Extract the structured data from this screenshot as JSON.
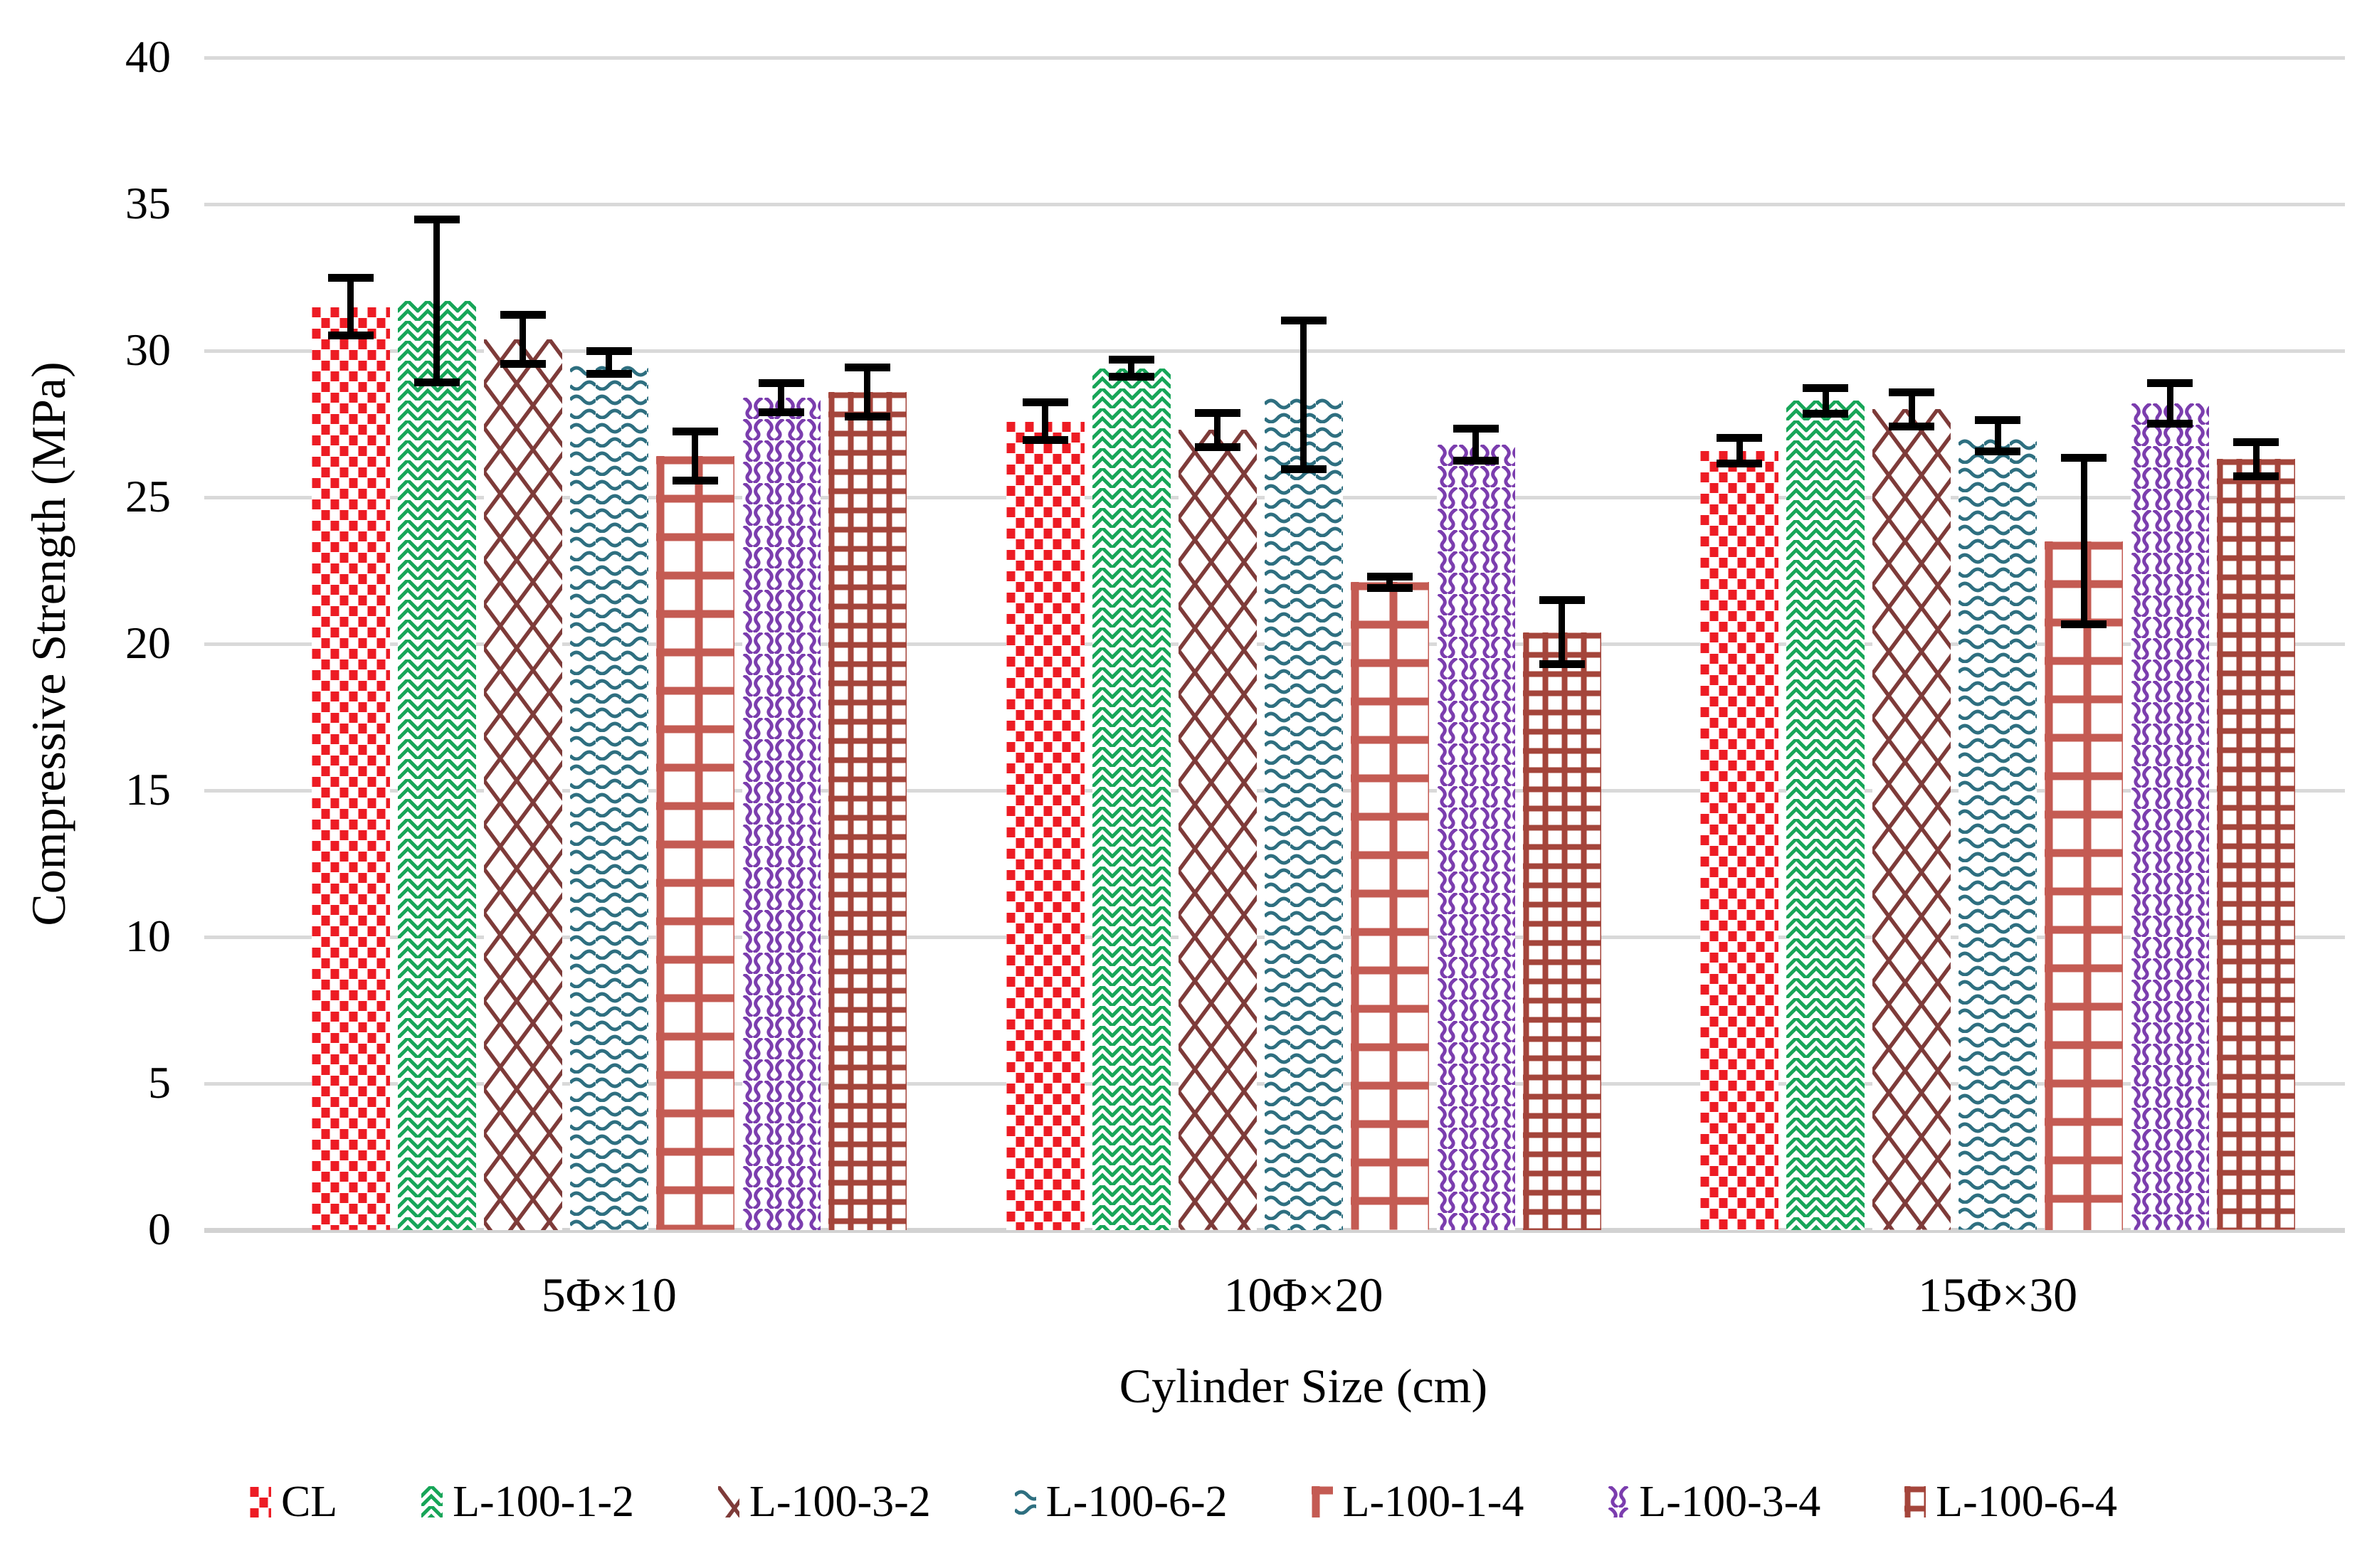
{
  "chart_data": {
    "type": "bar",
    "title": "",
    "xlabel": "Cylinder Size (cm)",
    "ylabel": "Compressive Strength (MPa)",
    "ylim": [
      0,
      40
    ],
    "yticks": [
      0,
      5,
      10,
      15,
      20,
      25,
      30,
      35,
      40
    ],
    "grid": true,
    "legend_position": "bottom",
    "error_bars": true,
    "categories": [
      "5Φ×10",
      "10Φ×20",
      "15Φ×30"
    ],
    "series": [
      {
        "name": "CL",
        "color": "#ED1C24",
        "pattern": "pat-dots",
        "values": [
          31.5,
          27.6,
          26.6
        ],
        "errors": [
          1.0,
          0.65,
          0.45
        ]
      },
      {
        "name": "L-100-1-2",
        "color": "#17A558",
        "pattern": "pat-zigzag",
        "values": [
          31.7,
          29.4,
          28.3
        ],
        "errors": [
          2.8,
          0.3,
          0.45
        ]
      },
      {
        "name": "L-100-3-2",
        "color": "#7E3B39",
        "pattern": "pat-diamond",
        "values": [
          30.4,
          27.3,
          28.0
        ],
        "errors": [
          0.85,
          0.6,
          0.6
        ]
      },
      {
        "name": "L-100-6-2",
        "color": "#2E6F80",
        "pattern": "pat-wave",
        "values": [
          29.6,
          28.5,
          27.1
        ],
        "errors": [
          0.4,
          2.55,
          0.55
        ]
      },
      {
        "name": "L-100-1-4",
        "color": "#C45B53",
        "pattern": "pat-ladder",
        "values": [
          26.4,
          22.1,
          23.5
        ],
        "errors": [
          0.85,
          0.2,
          2.85
        ]
      },
      {
        "name": "L-100-3-4",
        "color": "#7B3DAE",
        "pattern": "pat-squiggle",
        "values": [
          28.4,
          26.8,
          28.2
        ],
        "errors": [
          0.5,
          0.55,
          0.7
        ]
      },
      {
        "name": "L-100-6-4",
        "color": "#A4453B",
        "pattern": "pat-grid",
        "values": [
          28.6,
          20.4,
          26.3
        ],
        "errors": [
          0.85,
          1.1,
          0.6
        ]
      }
    ]
  },
  "colors": {
    "gridline": "#D9D9D9",
    "baseline": "#D2D2D2",
    "error_bar": "#000000",
    "text": "#000000",
    "background": "#FFFFFF"
  }
}
